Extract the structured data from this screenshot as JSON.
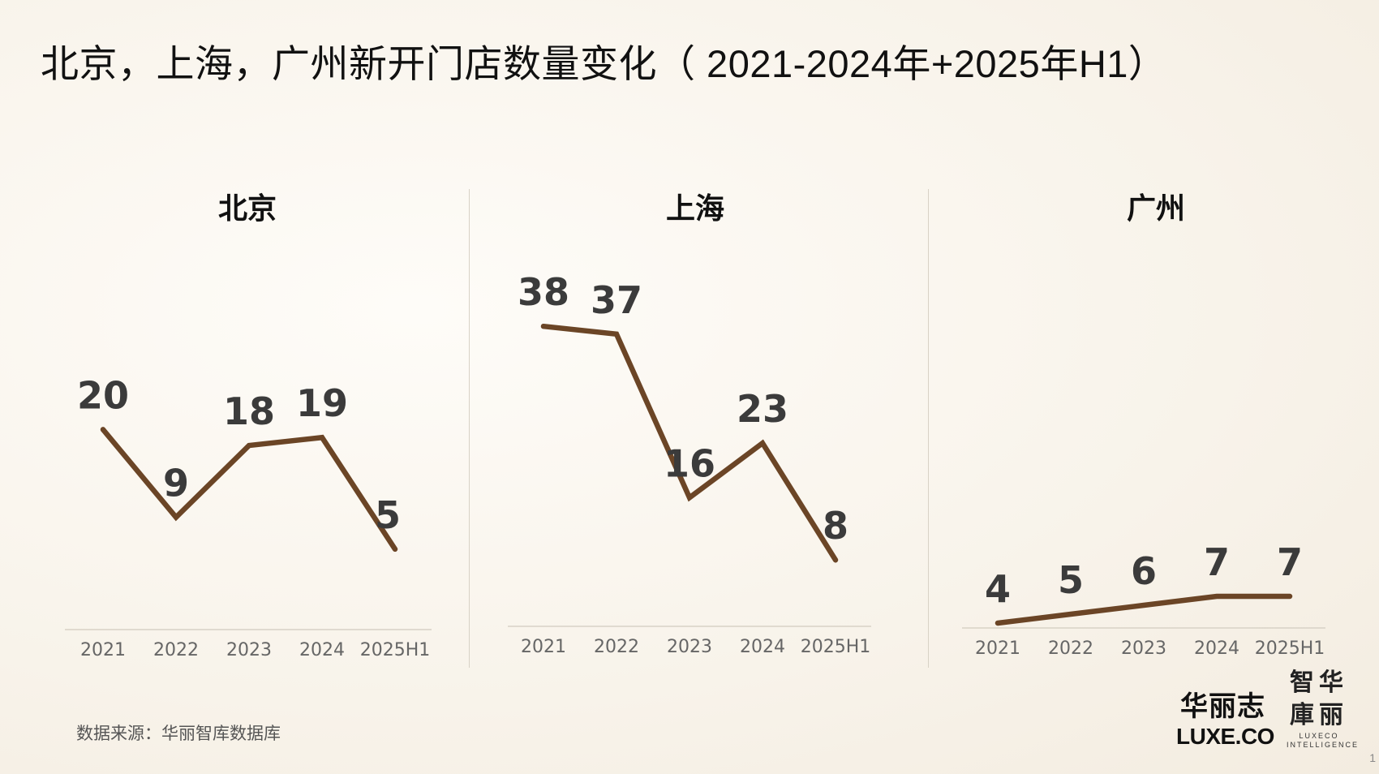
{
  "title": "北京，上海，广州新开门店数量变化（ 2021-2024年+2025年H1）",
  "chart_data": [
    {
      "type": "line",
      "title": "北京",
      "categories": [
        "2021",
        "2022",
        "2023",
        "2024",
        "2025H1"
      ],
      "values": [
        20,
        9,
        18,
        19,
        5
      ],
      "color": "#6b4526",
      "grid": false,
      "legend": "none"
    },
    {
      "type": "line",
      "title": "上海",
      "categories": [
        "2021",
        "2022",
        "2023",
        "2024",
        "2025H1"
      ],
      "values": [
        38,
        37,
        16,
        23,
        8
      ],
      "color": "#6b4526",
      "grid": false,
      "legend": "none"
    },
    {
      "type": "line",
      "title": "广州",
      "categories": [
        "2021",
        "2022",
        "2023",
        "2024",
        "2025H1"
      ],
      "values": [
        4,
        5,
        6,
        7,
        7
      ],
      "color": "#6b4526",
      "grid": false,
      "legend": "none"
    }
  ],
  "source": "数据来源：华丽智库数据库",
  "logo_luxe": {
    "cn": "华丽志",
    "en": "LUXE.CO"
  },
  "logo_intel": {
    "cn_top": "智华",
    "cn_bottom": "庫丽",
    "en_top": "LUXECO",
    "en_bottom": "INTELLIGENCE"
  },
  "page_number": "1",
  "colors": {
    "line": "#6b4526",
    "label": "#3b3b3b",
    "axis": "#d8d2c6",
    "background": "#f8f3ea"
  }
}
